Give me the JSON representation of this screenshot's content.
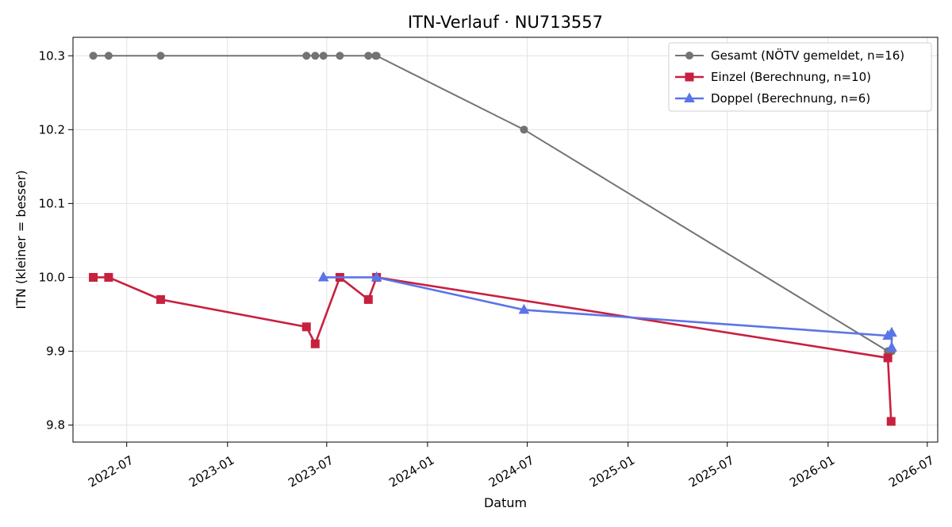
{
  "chart_data": {
    "type": "line",
    "title": "ITN-Verlauf · NU713557",
    "xlabel": "Datum",
    "ylabel": "ITN  (kleiner = besser)",
    "x_axis_type": "date",
    "xlim": [
      "2022-03-25",
      "2026-07-20"
    ],
    "ylim": [
      9.777,
      10.325
    ],
    "x_ticks": [
      "2022-07",
      "2023-01",
      "2023-07",
      "2024-01",
      "2024-07",
      "2025-01",
      "2025-07",
      "2026-01",
      "2026-07"
    ],
    "y_ticks": [
      9.8,
      9.9,
      10.0,
      10.1,
      10.2,
      10.3
    ],
    "y_tick_labels": [
      "9.8",
      "9.9",
      "10.0",
      "10.1",
      "10.2",
      "10.3"
    ],
    "grid": true,
    "legend_position": "top-right",
    "series": [
      {
        "name": "Gesamt (NÖTV gemeldet, n=16)",
        "color": "#737373",
        "marker": "circle",
        "points": [
          {
            "x": "2022-05-01",
            "y": 10.3
          },
          {
            "x": "2022-05-29",
            "y": 10.3
          },
          {
            "x": "2022-09-01",
            "y": 10.3
          },
          {
            "x": "2023-05-25",
            "y": 10.3
          },
          {
            "x": "2023-06-10",
            "y": 10.3
          },
          {
            "x": "2023-06-25",
            "y": 10.3
          },
          {
            "x": "2023-07-25",
            "y": 10.3
          },
          {
            "x": "2023-09-15",
            "y": 10.3
          },
          {
            "x": "2023-09-28",
            "y": 10.3
          },
          {
            "x": "2023-09-30",
            "y": 10.3
          },
          {
            "x": "2024-06-25",
            "y": 10.2
          },
          {
            "x": "2026-04-20",
            "y": 9.9
          },
          {
            "x": "2026-04-23",
            "y": 9.9
          },
          {
            "x": "2026-04-25",
            "y": 9.9
          },
          {
            "x": "2026-04-26",
            "y": 9.9
          },
          {
            "x": "2026-04-27",
            "y": 9.9
          }
        ]
      },
      {
        "name": "Einzel (Berechnung, n=10)",
        "color": "#c8203f",
        "marker": "square",
        "points": [
          {
            "x": "2022-05-01",
            "y": 10.0
          },
          {
            "x": "2022-05-29",
            "y": 10.0
          },
          {
            "x": "2022-09-01",
            "y": 9.97
          },
          {
            "x": "2023-05-25",
            "y": 9.933
          },
          {
            "x": "2023-06-10",
            "y": 9.91
          },
          {
            "x": "2023-07-25",
            "y": 10.0
          },
          {
            "x": "2023-09-15",
            "y": 9.97
          },
          {
            "x": "2023-09-30",
            "y": 10.0
          },
          {
            "x": "2026-04-20",
            "y": 9.891
          },
          {
            "x": "2026-04-26",
            "y": 9.805
          }
        ]
      },
      {
        "name": "Doppel (Berechnung, n=6)",
        "color": "#5b74e8",
        "marker": "triangle",
        "points": [
          {
            "x": "2023-06-25",
            "y": 10.0
          },
          {
            "x": "2023-09-30",
            "y": 10.0
          },
          {
            "x": "2024-06-25",
            "y": 9.956
          },
          {
            "x": "2026-04-20",
            "y": 9.921
          },
          {
            "x": "2026-04-27",
            "y": 9.925
          },
          {
            "x": "2026-04-27",
            "y": 9.905
          }
        ]
      }
    ]
  }
}
